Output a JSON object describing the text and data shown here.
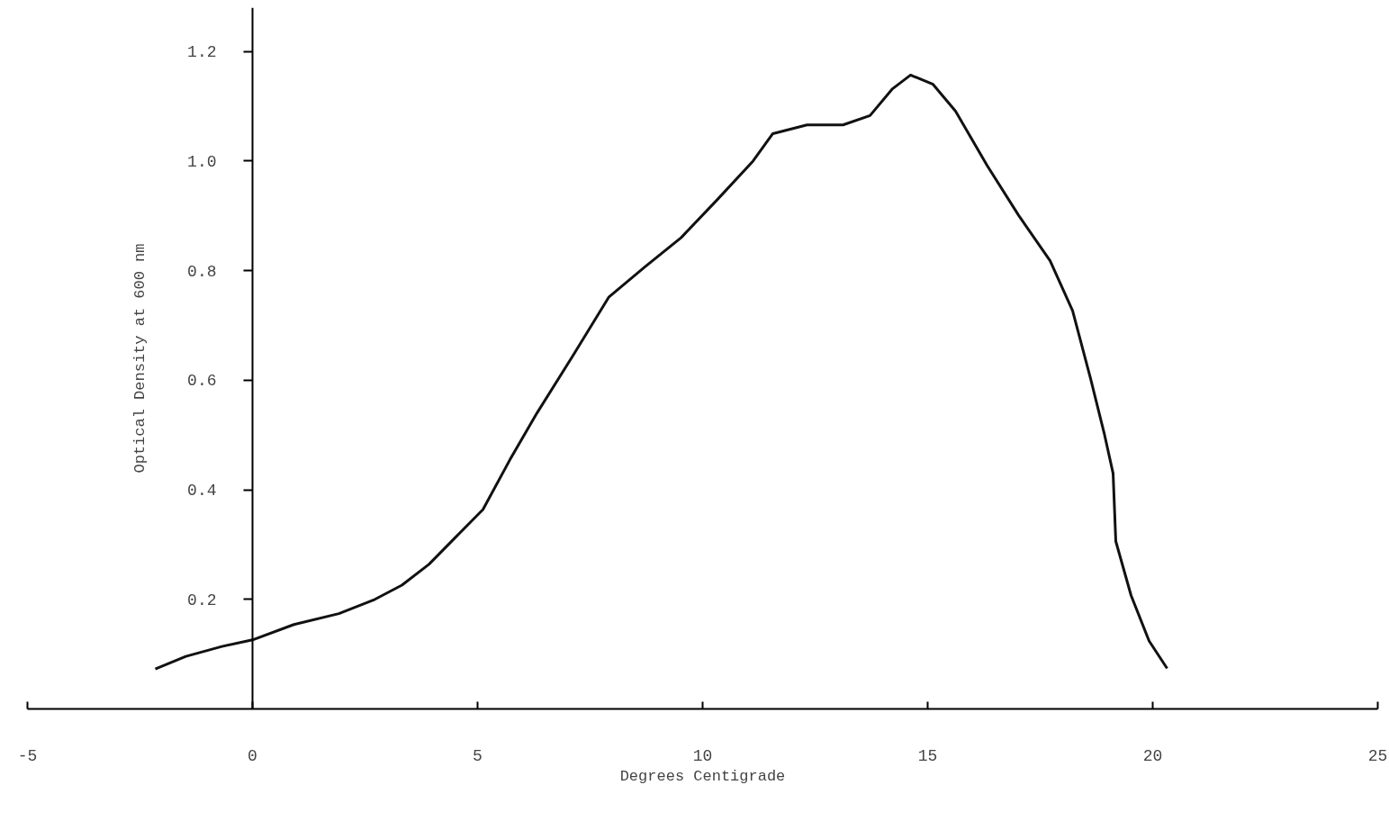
{
  "chart_data": {
    "type": "line",
    "xlabel": "Degrees Centigrade",
    "ylabel": "Optical Density at 600 nm",
    "x": [
      -2.16,
      -1.48,
      -0.68,
      0,
      0.92,
      1.92,
      2.72,
      3.32,
      3.92,
      4.52,
      5.12,
      5.72,
      6.32,
      7.12,
      7.92,
      8.72,
      9.52,
      10.32,
      11.12,
      11.56,
      12.32,
      13.12,
      13.72,
      14.22,
      14.62,
      15.12,
      15.62,
      16.32,
      17.02,
      17.72,
      18.22,
      18.62,
      18.92,
      19.12,
      19.18,
      19.52,
      19.92,
      20.32
    ],
    "series": [
      {
        "color": "#111111",
        "values": [
          0.073,
          0.096,
          0.114,
          0.126,
          0.154,
          0.174,
          0.2,
          0.226,
          0.264,
          0.314,
          0.364,
          0.455,
          0.54,
          0.645,
          0.752,
          0.807,
          0.86,
          0.929,
          1.0,
          1.05,
          1.066,
          1.066,
          1.083,
          1.132,
          1.157,
          1.14,
          1.091,
          0.992,
          0.901,
          0.818,
          0.727,
          0.603,
          0.504,
          0.43,
          0.306,
          0.207,
          0.124,
          0.074
        ]
      }
    ],
    "xlim": [
      -5,
      25
    ],
    "ylim": [
      0,
      1.28
    ],
    "xticks": [
      -5,
      0,
      5,
      10,
      15,
      20,
      25
    ],
    "yticks": [
      0.2,
      0.4,
      0.6,
      0.8,
      {
        "value": 1,
        "label": "1.0"
      },
      1.2
    ],
    "grid": false,
    "marker": "none",
    "line_style": "solid"
  }
}
